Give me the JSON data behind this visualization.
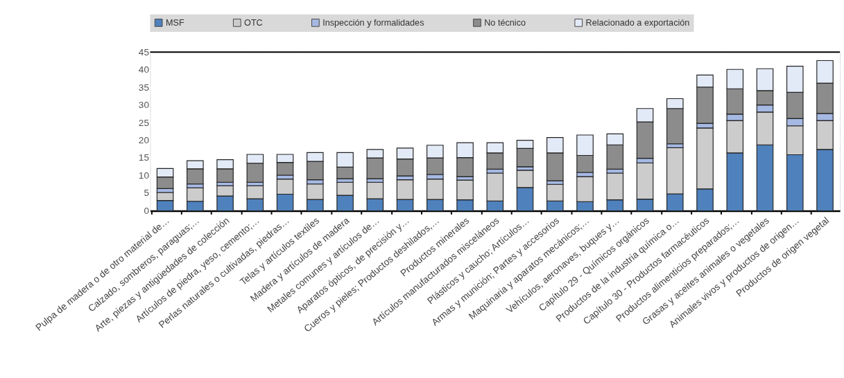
{
  "chart_data": {
    "type": "bar",
    "stacked": true,
    "legend": "top",
    "grid": true,
    "categories": [
      "Pulpa de madera o de otro material de…",
      "Calzado, sombreros, paraguas;…",
      "Arte, piezas y antigüedades de colección",
      "Artículos de piedra, yeso, cemento;…",
      "Perlas naturales o cultivadas, piedras…",
      "Telas y artículos textiles",
      "Madera y artículos de madera",
      "Metales comunes y artículos de…",
      "Aparatos ópticos, de precisión y…",
      "Cueros y pieles; Productos deshilados,…",
      "Productos minerales",
      "Artículos manufacturados misceláneos",
      "Plásticos y caucho; Artículos…",
      "Armas y munición; Partes y accesorios",
      "Maquinaria y aparatos mecánicos;…",
      "Vehículos, aeronaves, buques y…",
      "Capítulo 29 - Químicos orgánicos",
      "Productos de la industria química o…",
      "Capítulo 30 - Productos farmacéuticos",
      "Productos alimenticios preparados;…",
      "Grasas y aceites animales o vegetales",
      "Animales vivos y productos de origen…",
      "Productos de origen vegetal"
    ],
    "series": [
      {
        "name": "MSF",
        "color": "#4f81bd",
        "values": [
          2.9,
          2.7,
          4.2,
          3.4,
          4.7,
          3.2,
          4.4,
          3.4,
          3.2,
          3.2,
          3.1,
          2.8,
          6.6,
          2.8,
          2.6,
          3.1,
          3.3,
          4.8,
          6.2,
          16.4,
          18.7,
          15.9,
          17.4
        ]
      },
      {
        "name": "OTC",
        "color": "#cccccc",
        "values": [
          2.3,
          3.8,
          2.9,
          3.7,
          4.3,
          4.4,
          3.7,
          4.7,
          5.6,
          5.8,
          5.6,
          7.9,
          4.9,
          4.7,
          7.1,
          7.6,
          10.3,
          13.1,
          17.3,
          9.2,
          9.3,
          8.2,
          8.2
        ]
      },
      {
        "name": "Inspección y formalidades",
        "color": "#a6b9e3",
        "values": [
          1.1,
          1.1,
          1.0,
          1.0,
          1.1,
          1.2,
          1.0,
          1.0,
          1.1,
          1.3,
          1.0,
          1.1,
          1.0,
          1.0,
          1.2,
          1.1,
          1.3,
          1.1,
          1.3,
          1.8,
          2.0,
          2.1,
          2.0
        ]
      },
      {
        "name": "No técnico",
        "color": "#8c8c8c",
        "values": [
          3.3,
          4.3,
          3.8,
          5.4,
          3.6,
          5.2,
          3.3,
          5.9,
          4.8,
          4.7,
          5.4,
          4.6,
          5.2,
          7.9,
          4.8,
          6.9,
          10.3,
          10.0,
          10.3,
          7.2,
          4.1,
          7.4,
          8.6
        ]
      },
      {
        "name": "Relacionado a exportación",
        "color": "#e3eaf7",
        "values": [
          2.4,
          2.3,
          2.6,
          2.5,
          2.3,
          2.5,
          4.1,
          2.4,
          3.1,
          3.6,
          4.2,
          2.9,
          2.3,
          4.4,
          5.8,
          3.1,
          3.8,
          2.8,
          3.4,
          5.5,
          6.2,
          7.4,
          6.4
        ]
      }
    ],
    "ylim": [
      0,
      45
    ],
    "yticks": [
      0,
      5,
      10,
      15,
      20,
      25,
      30,
      35,
      40,
      45
    ]
  }
}
